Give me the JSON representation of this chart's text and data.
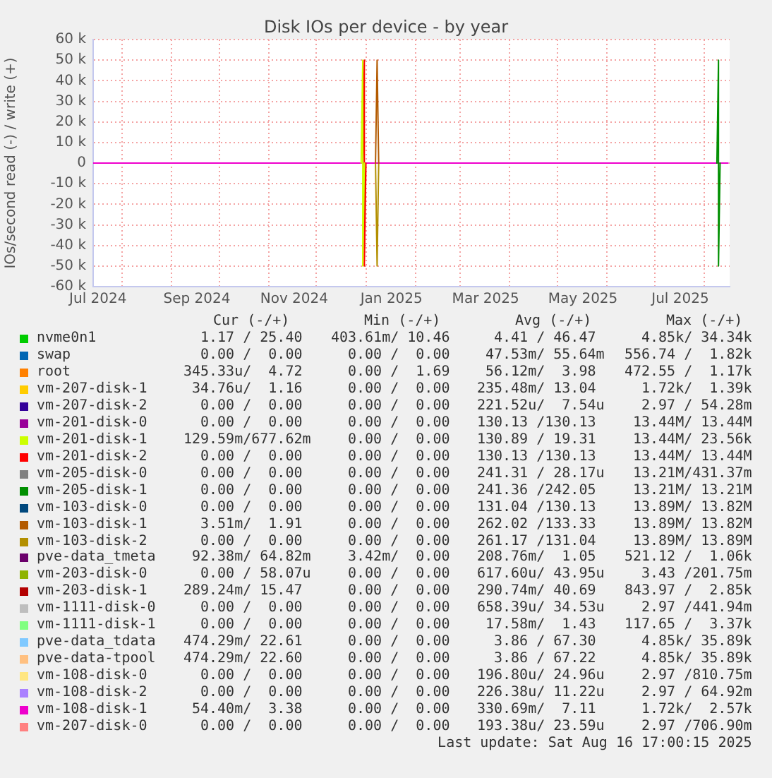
{
  "chart_data": {
    "type": "line",
    "title": "Disk IOs per device - by year",
    "ylabel": "IOs/second read (-) / write (+)",
    "x": [
      "2024-07-14",
      "2025-08-16"
    ],
    "xlim": [
      "2024-07-14",
      "2025-08-17"
    ],
    "xticks": [
      {
        "value": "2024-07-17",
        "label": "Jul 2024"
      },
      {
        "value": "2024-08-01",
        "label": null
      },
      {
        "value": "2024-09-01",
        "label": null
      },
      {
        "value": "2024-09-17",
        "label": "Sep 2024"
      },
      {
        "value": "2024-10-01",
        "label": null
      },
      {
        "value": "2024-11-01",
        "label": null
      },
      {
        "value": "2024-11-17",
        "label": "Nov 2024"
      },
      {
        "value": "2024-12-01",
        "label": null
      },
      {
        "value": "2025-01-01",
        "label": null
      },
      {
        "value": "2025-01-17",
        "label": "Jan 2025"
      },
      {
        "value": "2025-02-01",
        "label": null
      },
      {
        "value": "2025-03-01",
        "label": null
      },
      {
        "value": "2025-03-17",
        "label": "Mar 2025"
      },
      {
        "value": "2025-04-01",
        "label": null
      },
      {
        "value": "2025-05-01",
        "label": null
      },
      {
        "value": "2025-05-17",
        "label": "May 2025"
      },
      {
        "value": "2025-06-01",
        "label": null
      },
      {
        "value": "2025-07-01",
        "label": null
      },
      {
        "value": "2025-07-17",
        "label": "Jul 2025"
      },
      {
        "value": "2025-08-01",
        "label": null
      }
    ],
    "ylim": [
      -60000,
      60000
    ],
    "yticks": [
      {
        "value": -60000,
        "label": "-60 k"
      },
      {
        "value": -50000,
        "label": "-50 k"
      },
      {
        "value": -40000,
        "label": "-40 k"
      },
      {
        "value": -30000,
        "label": "-30 k"
      },
      {
        "value": -20000,
        "label": "-20 k"
      },
      {
        "value": -10000,
        "label": "-10 k"
      },
      0,
      {
        "value": 10000,
        "label": "10 k"
      },
      {
        "value": 20000,
        "label": "20 k"
      },
      {
        "value": 30000,
        "label": "30 k"
      },
      {
        "value": 40000,
        "label": "40 k"
      },
      {
        "value": 50000,
        "label": "50 k"
      },
      {
        "value": 60000,
        "label": "60 k"
      }
    ],
    "grid": true,
    "legend": "bottom",
    "series": [
      {
        "name": "nvme0n1",
        "color": "#00cc00",
        "values": [
          null,
          null
        ]
      },
      {
        "name": "swap",
        "color": "#0066b3",
        "values": [
          null,
          null
        ]
      },
      {
        "name": "root",
        "color": "#ff8000",
        "values": [
          null,
          null
        ]
      },
      {
        "name": "vm-207-disk-1",
        "color": "#ffcc00",
        "values": [
          null,
          null
        ]
      },
      {
        "name": "vm-207-disk-2",
        "color": "#330099",
        "values": [
          null,
          null
        ]
      },
      {
        "name": "vm-201-disk-0",
        "color": "#990099",
        "values": [
          null,
          null
        ]
      },
      {
        "name": "vm-201-disk-1",
        "color": "#ccff00",
        "x": [
          "2024-12-29",
          "2024-12-30",
          "2024-12-30",
          "2024-12-31"
        ],
        "values": [
          0,
          50000,
          -50000,
          0
        ]
      },
      {
        "name": "vm-201-disk-2",
        "color": "#ff0000",
        "x": [
          "2024-12-30",
          "2024-12-31",
          "2024-12-31",
          "2025-01-01"
        ],
        "values": [
          0,
          50000,
          -50000,
          0
        ]
      },
      {
        "name": "vm-205-disk-0",
        "color": "#808080",
        "values": [
          null,
          null
        ]
      },
      {
        "name": "vm-205-disk-1",
        "color": "#008f00",
        "x": [
          "2025-08-09",
          "2025-08-10",
          "2025-08-10",
          "2025-08-11"
        ],
        "values": [
          0,
          50000,
          -50000,
          0
        ]
      },
      {
        "name": "vm-103-disk-0",
        "color": "#00487d",
        "values": [
          null,
          null
        ]
      },
      {
        "name": "vm-103-disk-1",
        "color": "#b35a00",
        "x": [
          "2025-01-07",
          "2025-01-08",
          "2025-01-09"
        ],
        "values": [
          0,
          50000,
          0
        ]
      },
      {
        "name": "vm-103-disk-2",
        "color": "#b38f00",
        "x": [
          "2025-01-07",
          "2025-01-08",
          "2025-01-09"
        ],
        "values": [
          0,
          -50000,
          0
        ]
      },
      {
        "name": "pve-data_tmeta",
        "color": "#6b006b",
        "values": [
          null,
          null
        ]
      },
      {
        "name": "vm-203-disk-0",
        "color": "#8fb300",
        "values": [
          null,
          null
        ]
      },
      {
        "name": "vm-203-disk-1",
        "color": "#b30000",
        "values": [
          null,
          null
        ]
      },
      {
        "name": "vm-1111-disk-0",
        "color": "#bebebe",
        "values": [
          null,
          null
        ]
      },
      {
        "name": "vm-1111-disk-1",
        "color": "#80ff80",
        "values": [
          null,
          null
        ]
      },
      {
        "name": "pve-data_tdata",
        "color": "#80c9ff",
        "values": [
          null,
          null
        ]
      },
      {
        "name": "pve-data-tpool",
        "color": "#ffc080",
        "values": [
          null,
          null
        ]
      },
      {
        "name": "vm-108-disk-0",
        "color": "#ffe680",
        "values": [
          null,
          null
        ]
      },
      {
        "name": "vm-108-disk-2",
        "color": "#aa80ff",
        "values": [
          null,
          null
        ]
      },
      {
        "name": "vm-108-disk-1",
        "color": "#ee00cc",
        "values": [
          0,
          0
        ]
      },
      {
        "name": "vm-207-disk-0",
        "color": "#ff8080",
        "values": [
          null,
          null
        ]
      }
    ],
    "annotations": [
      "Cur (-/+)",
      "Min (-/+)",
      "Avg (-/+)",
      "Max (-/+)",
      "1.17 / 25.40",
      "403.61m/ 10.46",
      "4.41 / 46.47",
      "4.85k/ 34.34k",
      "0.00 /  0.00",
      "0.00 /  0.00",
      "47.53m/ 55.64m",
      "556.74 /  1.82k",
      "345.33u/  4.72",
      "0.00 /  1.69",
      "56.12m/  3.98",
      "472.55 /  1.17k",
      "34.76u/  1.16",
      "0.00 /  0.00",
      "235.48m/ 13.04",
      "1.72k/  1.39k",
      "0.00 /  0.00",
      "0.00 /  0.00",
      "221.52u/  7.54u",
      "2.97 / 54.28m",
      "0.00 /  0.00",
      "0.00 /  0.00",
      "130.13 /130.13",
      "13.44M/ 13.44M",
      "129.59m/677.62m",
      "0.00 /  0.00",
      "130.89 / 19.31",
      "13.44M/ 23.56k",
      "0.00 /  0.00",
      "0.00 /  0.00",
      "130.13 /130.13",
      "13.44M/ 13.44M",
      "0.00 /  0.00",
      "0.00 /  0.00",
      "241.31 / 28.17u",
      "13.21M/431.37m",
      "0.00 /  0.00",
      "0.00 /  0.00",
      "241.36 /242.05",
      "13.21M/ 13.21M",
      "0.00 /  0.00",
      "0.00 /  0.00",
      "131.04 /130.13",
      "13.89M/ 13.82M",
      "3.51m/  1.91",
      "0.00 /  0.00",
      "262.02 /133.33",
      "13.89M/ 13.82M",
      "0.00 /  0.00",
      "0.00 /  0.00",
      "261.17 /131.04",
      "13.89M/ 13.89M",
      "92.38m/ 64.82m",
      "3.42m/  0.00",
      "208.76m/  1.05",
      "521.12 /  1.06k",
      "0.00 / 58.07u",
      "0.00 /  0.00",
      "617.60u/ 43.95u",
      "3.43 /201.75m",
      "289.24m/ 15.47",
      "0.00 /  0.00",
      "290.74m/ 40.69",
      "843.97 /  2.85k",
      "0.00 /  0.00",
      "0.00 /  0.00",
      "658.39u/ 34.53u",
      "2.97 /441.94m",
      "0.00 /  0.00",
      "0.00 /  0.00",
      "17.58m/  1.43",
      "117.65 /  3.37k",
      "474.29m/ 22.61",
      "0.00 /  0.00",
      "3.86 / 67.30",
      "4.85k/ 35.89k",
      "474.29m/ 22.60",
      "0.00 /  0.00",
      "3.86 / 67.22",
      "4.85k/ 35.89k",
      "0.00 /  0.00",
      "0.00 /  0.00",
      "196.80u/ 24.96u",
      "2.97 /810.75m",
      "0.00 /  0.00",
      "0.00 /  0.00",
      "226.38u/ 11.22u",
      "2.97 / 64.92m",
      "54.40m/  3.38",
      "0.00 /  0.00",
      "330.69m/  7.11",
      "1.72k/  2.57k",
      "0.00 /  0.00",
      "0.00 /  0.00",
      "193.38u/ 23.59u",
      "2.97 /706.90m",
      "Last update: Sat Aug 16 17:00:15 2025"
    ]
  }
}
